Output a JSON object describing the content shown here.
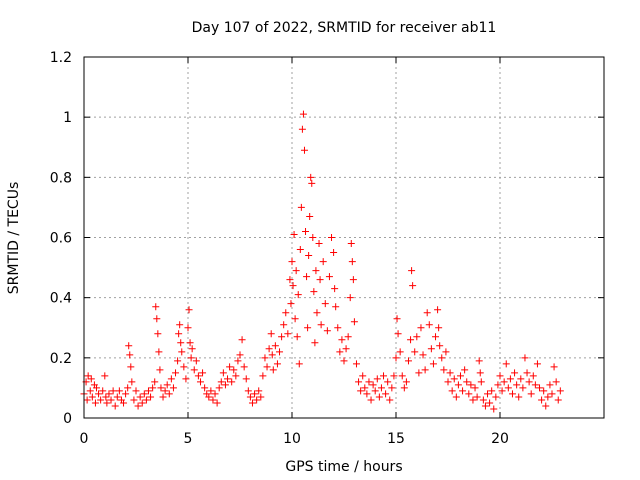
{
  "chart_data": {
    "type": "scatter",
    "title": "Day 107 of 2022, SRMTID for receiver ab11",
    "xlabel": "GPS time / hours",
    "ylabel": "SRMTID / TECUs",
    "xlim": [
      0,
      25
    ],
    "ylim": [
      0,
      1.2
    ],
    "xticks": [
      0,
      5,
      10,
      15,
      20
    ],
    "yticks": [
      0,
      0.2,
      0.4,
      0.6,
      0.8,
      1,
      1.2
    ],
    "ytick_labels": [
      "0",
      "0.2",
      "0.4",
      "0.6",
      "0.8",
      "1",
      "1.2"
    ],
    "grid": true,
    "marker": "+",
    "color": "#ff0000",
    "series": [
      {
        "name": "SRMTID",
        "points": [
          [
            0.0,
            0.08
          ],
          [
            0.1,
            0.12
          ],
          [
            0.15,
            0.06
          ],
          [
            0.2,
            0.14
          ],
          [
            0.3,
            0.09
          ],
          [
            0.35,
            0.13
          ],
          [
            0.4,
            0.07
          ],
          [
            0.5,
            0.11
          ],
          [
            0.55,
            0.05
          ],
          [
            0.6,
            0.1
          ],
          [
            0.7,
            0.08
          ],
          [
            0.8,
            0.06
          ],
          [
            0.9,
            0.09
          ],
          [
            1.0,
            0.14
          ],
          [
            1.05,
            0.07
          ],
          [
            1.1,
            0.05
          ],
          [
            1.2,
            0.08
          ],
          [
            1.3,
            0.06
          ],
          [
            1.4,
            0.09
          ],
          [
            1.5,
            0.04
          ],
          [
            1.6,
            0.07
          ],
          [
            1.7,
            0.09
          ],
          [
            1.8,
            0.06
          ],
          [
            1.9,
            0.05
          ],
          [
            2.0,
            0.08
          ],
          [
            2.1,
            0.1
          ],
          [
            2.15,
            0.24
          ],
          [
            2.2,
            0.21
          ],
          [
            2.25,
            0.17
          ],
          [
            2.3,
            0.12
          ],
          [
            2.4,
            0.06
          ],
          [
            2.5,
            0.09
          ],
          [
            2.6,
            0.04
          ],
          [
            2.7,
            0.07
          ],
          [
            2.8,
            0.05
          ],
          [
            2.9,
            0.08
          ],
          [
            3.0,
            0.06
          ],
          [
            3.1,
            0.09
          ],
          [
            3.2,
            0.07
          ],
          [
            3.3,
            0.1
          ],
          [
            3.4,
            0.12
          ],
          [
            3.45,
            0.37
          ],
          [
            3.5,
            0.33
          ],
          [
            3.55,
            0.28
          ],
          [
            3.6,
            0.22
          ],
          [
            3.65,
            0.16
          ],
          [
            3.7,
            0.1
          ],
          [
            3.8,
            0.07
          ],
          [
            3.9,
            0.09
          ],
          [
            4.0,
            0.11
          ],
          [
            4.1,
            0.08
          ],
          [
            4.2,
            0.13
          ],
          [
            4.3,
            0.1
          ],
          [
            4.4,
            0.15
          ],
          [
            4.5,
            0.19
          ],
          [
            4.55,
            0.28
          ],
          [
            4.6,
            0.31
          ],
          [
            4.65,
            0.25
          ],
          [
            4.7,
            0.22
          ],
          [
            4.8,
            0.17
          ],
          [
            4.9,
            0.13
          ],
          [
            5.0,
            0.3
          ],
          [
            5.05,
            0.36
          ],
          [
            5.1,
            0.25
          ],
          [
            5.15,
            0.2
          ],
          [
            5.2,
            0.23
          ],
          [
            5.3,
            0.16
          ],
          [
            5.4,
            0.19
          ],
          [
            5.5,
            0.14
          ],
          [
            5.6,
            0.12
          ],
          [
            5.7,
            0.15
          ],
          [
            5.8,
            0.1
          ],
          [
            5.9,
            0.08
          ],
          [
            6.0,
            0.07
          ],
          [
            6.1,
            0.09
          ],
          [
            6.2,
            0.06
          ],
          [
            6.3,
            0.08
          ],
          [
            6.4,
            0.05
          ],
          [
            6.5,
            0.1
          ],
          [
            6.6,
            0.12
          ],
          [
            6.7,
            0.15
          ],
          [
            6.8,
            0.11
          ],
          [
            6.9,
            0.13
          ],
          [
            7.0,
            0.17
          ],
          [
            7.1,
            0.12
          ],
          [
            7.2,
            0.16
          ],
          [
            7.3,
            0.14
          ],
          [
            7.4,
            0.19
          ],
          [
            7.5,
            0.21
          ],
          [
            7.6,
            0.26
          ],
          [
            7.7,
            0.17
          ],
          [
            7.8,
            0.13
          ],
          [
            7.9,
            0.09
          ],
          [
            8.0,
            0.07
          ],
          [
            8.1,
            0.05
          ],
          [
            8.2,
            0.08
          ],
          [
            8.3,
            0.06
          ],
          [
            8.4,
            0.09
          ],
          [
            8.5,
            0.07
          ],
          [
            8.6,
            0.14
          ],
          [
            8.7,
            0.2
          ],
          [
            8.8,
            0.17
          ],
          [
            8.9,
            0.23
          ],
          [
            9.0,
            0.28
          ],
          [
            9.05,
            0.21
          ],
          [
            9.1,
            0.16
          ],
          [
            9.2,
            0.24
          ],
          [
            9.3,
            0.18
          ],
          [
            9.4,
            0.22
          ],
          [
            9.5,
            0.27
          ],
          [
            9.6,
            0.31
          ],
          [
            9.7,
            0.35
          ],
          [
            9.8,
            0.28
          ],
          [
            9.9,
            0.46
          ],
          [
            9.95,
            0.38
          ],
          [
            10.0,
            0.52
          ],
          [
            10.05,
            0.44
          ],
          [
            10.1,
            0.61
          ],
          [
            10.15,
            0.33
          ],
          [
            10.2,
            0.49
          ],
          [
            10.25,
            0.27
          ],
          [
            10.3,
            0.41
          ],
          [
            10.35,
            0.18
          ],
          [
            10.4,
            0.56
          ],
          [
            10.45,
            0.7
          ],
          [
            10.5,
            0.96
          ],
          [
            10.55,
            1.01
          ],
          [
            10.6,
            0.89
          ],
          [
            10.65,
            0.62
          ],
          [
            10.7,
            0.47
          ],
          [
            10.75,
            0.3
          ],
          [
            10.8,
            0.54
          ],
          [
            10.85,
            0.67
          ],
          [
            10.9,
            0.8
          ],
          [
            10.95,
            0.78
          ],
          [
            11.0,
            0.6
          ],
          [
            11.05,
            0.42
          ],
          [
            11.1,
            0.25
          ],
          [
            11.15,
            0.49
          ],
          [
            11.2,
            0.35
          ],
          [
            11.3,
            0.58
          ],
          [
            11.35,
            0.46
          ],
          [
            11.4,
            0.31
          ],
          [
            11.5,
            0.52
          ],
          [
            11.6,
            0.38
          ],
          [
            11.7,
            0.29
          ],
          [
            11.8,
            0.47
          ],
          [
            11.9,
            0.6
          ],
          [
            12.0,
            0.55
          ],
          [
            12.05,
            0.43
          ],
          [
            12.1,
            0.37
          ],
          [
            12.2,
            0.3
          ],
          [
            12.3,
            0.22
          ],
          [
            12.4,
            0.26
          ],
          [
            12.5,
            0.19
          ],
          [
            12.6,
            0.23
          ],
          [
            12.7,
            0.27
          ],
          [
            12.8,
            0.4
          ],
          [
            12.85,
            0.58
          ],
          [
            12.9,
            0.52
          ],
          [
            12.95,
            0.46
          ],
          [
            13.0,
            0.32
          ],
          [
            13.1,
            0.18
          ],
          [
            13.2,
            0.12
          ],
          [
            13.3,
            0.09
          ],
          [
            13.4,
            0.14
          ],
          [
            13.5,
            0.1
          ],
          [
            13.6,
            0.08
          ],
          [
            13.7,
            0.12
          ],
          [
            13.8,
            0.06
          ],
          [
            13.9,
            0.11
          ],
          [
            14.0,
            0.09
          ],
          [
            14.1,
            0.13
          ],
          [
            14.2,
            0.07
          ],
          [
            14.3,
            0.1
          ],
          [
            14.4,
            0.14
          ],
          [
            14.5,
            0.08
          ],
          [
            14.6,
            0.12
          ],
          [
            14.7,
            0.06
          ],
          [
            14.8,
            0.1
          ],
          [
            14.9,
            0.14
          ],
          [
            15.0,
            0.2
          ],
          [
            15.05,
            0.33
          ],
          [
            15.1,
            0.28
          ],
          [
            15.2,
            0.22
          ],
          [
            15.3,
            0.14
          ],
          [
            15.4,
            0.1
          ],
          [
            15.5,
            0.12
          ],
          [
            15.6,
            0.19
          ],
          [
            15.7,
            0.26
          ],
          [
            15.75,
            0.49
          ],
          [
            15.8,
            0.44
          ],
          [
            15.9,
            0.22
          ],
          [
            16.0,
            0.27
          ],
          [
            16.1,
            0.15
          ],
          [
            16.2,
            0.3
          ],
          [
            16.3,
            0.21
          ],
          [
            16.4,
            0.16
          ],
          [
            16.5,
            0.35
          ],
          [
            16.6,
            0.31
          ],
          [
            16.7,
            0.23
          ],
          [
            16.8,
            0.18
          ],
          [
            16.9,
            0.27
          ],
          [
            17.0,
            0.36
          ],
          [
            17.05,
            0.3
          ],
          [
            17.1,
            0.24
          ],
          [
            17.2,
            0.2
          ],
          [
            17.3,
            0.16
          ],
          [
            17.4,
            0.22
          ],
          [
            17.5,
            0.12
          ],
          [
            17.6,
            0.15
          ],
          [
            17.7,
            0.09
          ],
          [
            17.8,
            0.13
          ],
          [
            17.9,
            0.07
          ],
          [
            18.0,
            0.11
          ],
          [
            18.1,
            0.14
          ],
          [
            18.2,
            0.09
          ],
          [
            18.3,
            0.16
          ],
          [
            18.4,
            0.12
          ],
          [
            18.5,
            0.08
          ],
          [
            18.6,
            0.11
          ],
          [
            18.7,
            0.06
          ],
          [
            18.8,
            0.1
          ],
          [
            18.9,
            0.07
          ],
          [
            19.0,
            0.19
          ],
          [
            19.05,
            0.15
          ],
          [
            19.1,
            0.12
          ],
          [
            19.2,
            0.06
          ],
          [
            19.3,
            0.04
          ],
          [
            19.4,
            0.08
          ],
          [
            19.5,
            0.05
          ],
          [
            19.6,
            0.09
          ],
          [
            19.7,
            0.03
          ],
          [
            19.8,
            0.07
          ],
          [
            19.9,
            0.11
          ],
          [
            20.0,
            0.14
          ],
          [
            20.1,
            0.09
          ],
          [
            20.2,
            0.12
          ],
          [
            20.3,
            0.18
          ],
          [
            20.4,
            0.1
          ],
          [
            20.5,
            0.13
          ],
          [
            20.6,
            0.08
          ],
          [
            20.7,
            0.15
          ],
          [
            20.8,
            0.11
          ],
          [
            20.9,
            0.07
          ],
          [
            21.0,
            0.13
          ],
          [
            21.1,
            0.1
          ],
          [
            21.2,
            0.2
          ],
          [
            21.3,
            0.15
          ],
          [
            21.4,
            0.12
          ],
          [
            21.5,
            0.08
          ],
          [
            21.6,
            0.14
          ],
          [
            21.7,
            0.11
          ],
          [
            21.8,
            0.18
          ],
          [
            21.9,
            0.1
          ],
          [
            22.0,
            0.06
          ],
          [
            22.1,
            0.09
          ],
          [
            22.2,
            0.04
          ],
          [
            22.3,
            0.07
          ],
          [
            22.4,
            0.11
          ],
          [
            22.5,
            0.08
          ],
          [
            22.6,
            0.17
          ],
          [
            22.7,
            0.12
          ],
          [
            22.8,
            0.06
          ],
          [
            22.9,
            0.09
          ]
        ]
      }
    ]
  }
}
